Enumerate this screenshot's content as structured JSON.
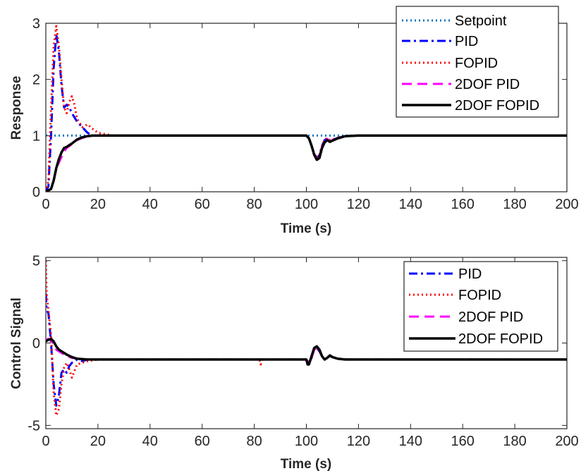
{
  "colors": {
    "setpoint": "#0072BD",
    "pid": "#0000FF",
    "fopid": "#FF0000",
    "twodof_pid": "#FF00FF",
    "twodof_fopid": "#000000"
  },
  "chart_data": [
    {
      "type": "line",
      "ylabel": "Response",
      "xlabel": "Time (s)",
      "xlim": [
        0,
        200
      ],
      "ylim": [
        0,
        3
      ],
      "xticks": [
        "0",
        "20",
        "40",
        "60",
        "80",
        "100",
        "120",
        "140",
        "160",
        "180",
        "200"
      ],
      "yticks": [
        "0",
        "1",
        "2",
        "3"
      ],
      "grid": false,
      "legend_position": "top-right",
      "series": [
        {
          "name": "Setpoint",
          "style": "dotted",
          "color": "#0072BD",
          "points": [
            [
              0,
              1
            ],
            [
              200,
              1
            ]
          ]
        },
        {
          "name": "PID",
          "style": "dashdot",
          "color": "#0000FF",
          "points": [
            [
              0,
              0
            ],
            [
              1,
              0.1
            ],
            [
              2,
              1.0
            ],
            [
              3,
              2.2
            ],
            [
              4,
              2.8
            ],
            [
              5,
              2.5
            ],
            [
              6,
              1.9
            ],
            [
              7,
              1.5
            ],
            [
              8,
              1.55
            ],
            [
              9,
              1.5
            ],
            [
              10,
              1.4
            ],
            [
              12,
              1.25
            ],
            [
              14,
              1.15
            ],
            [
              16,
              1.05
            ],
            [
              18,
              1.0
            ],
            [
              20,
              1.0
            ],
            [
              100,
              1.0
            ],
            [
              101,
              0.95
            ],
            [
              102,
              0.82
            ],
            [
              103,
              0.68
            ],
            [
              104,
              0.6
            ],
            [
              105,
              0.65
            ],
            [
              106,
              0.82
            ],
            [
              107,
              0.92
            ],
            [
              108,
              0.95
            ],
            [
              109,
              0.91
            ],
            [
              110,
              0.92
            ],
            [
              112,
              0.96
            ],
            [
              115,
              0.99
            ],
            [
              120,
              1.0
            ],
            [
              200,
              1.0
            ]
          ]
        },
        {
          "name": "FOPID",
          "style": "dotted",
          "color": "#FF0000",
          "points": [
            [
              0,
              0
            ],
            [
              1,
              0.2
            ],
            [
              2,
              1.5
            ],
            [
              3,
              2.6
            ],
            [
              4,
              2.95
            ],
            [
              5,
              2.6
            ],
            [
              6,
              2.0
            ],
            [
              7,
              1.5
            ],
            [
              8,
              1.4
            ],
            [
              9,
              1.6
            ],
            [
              10,
              1.7
            ],
            [
              11,
              1.55
            ],
            [
              12,
              1.3
            ],
            [
              14,
              1.15
            ],
            [
              16,
              1.2
            ],
            [
              18,
              1.12
            ],
            [
              20,
              1.05
            ],
            [
              22,
              1.03
            ],
            [
              26,
              1.0
            ],
            [
              100,
              1.0
            ],
            [
              101,
              0.95
            ],
            [
              102,
              0.82
            ],
            [
              103,
              0.68
            ],
            [
              104,
              0.6
            ],
            [
              105,
              0.65
            ],
            [
              106,
              0.82
            ],
            [
              107,
              0.92
            ],
            [
              108,
              0.96
            ],
            [
              109,
              0.92
            ],
            [
              110,
              0.93
            ],
            [
              112,
              0.96
            ],
            [
              115,
              0.99
            ],
            [
              120,
              1.0
            ],
            [
              200,
              1.0
            ]
          ]
        },
        {
          "name": "2DOF PID",
          "style": "dashed",
          "color": "#FF00FF",
          "points": [
            [
              0,
              0
            ],
            [
              2,
              0.05
            ],
            [
              3,
              0.2
            ],
            [
              4,
              0.4
            ],
            [
              5,
              0.52
            ],
            [
              6,
              0.62
            ],
            [
              7,
              0.72
            ],
            [
              8,
              0.78
            ],
            [
              10,
              0.85
            ],
            [
              12,
              0.92
            ],
            [
              14,
              0.96
            ],
            [
              16,
              0.98
            ],
            [
              18,
              1.0
            ],
            [
              100,
              1.0
            ],
            [
              101,
              0.95
            ],
            [
              102,
              0.82
            ],
            [
              103,
              0.66
            ],
            [
              104,
              0.58
            ],
            [
              105,
              0.62
            ],
            [
              106,
              0.8
            ],
            [
              107,
              0.9
            ],
            [
              108,
              0.94
            ],
            [
              109,
              0.9
            ],
            [
              110,
              0.92
            ],
            [
              112,
              0.96
            ],
            [
              115,
              0.99
            ],
            [
              120,
              1.0
            ],
            [
              200,
              1.0
            ]
          ]
        },
        {
          "name": "2DOF FOPID",
          "style": "solid",
          "color": "#000000",
          "points": [
            [
              0,
              0
            ],
            [
              2,
              0.05
            ],
            [
              3,
              0.2
            ],
            [
              4,
              0.42
            ],
            [
              5,
              0.58
            ],
            [
              6,
              0.7
            ],
            [
              7,
              0.78
            ],
            [
              8,
              0.8
            ],
            [
              9,
              0.83
            ],
            [
              10,
              0.86
            ],
            [
              12,
              0.93
            ],
            [
              14,
              0.97
            ],
            [
              16,
              0.99
            ],
            [
              18,
              1.0
            ],
            [
              100,
              1.0
            ],
            [
              101,
              0.95
            ],
            [
              102,
              0.82
            ],
            [
              103,
              0.66
            ],
            [
              104,
              0.57
            ],
            [
              105,
              0.6
            ],
            [
              106,
              0.78
            ],
            [
              107,
              0.88
            ],
            [
              108,
              0.92
            ],
            [
              109,
              0.89
            ],
            [
              110,
              0.91
            ],
            [
              112,
              0.95
            ],
            [
              115,
              0.99
            ],
            [
              120,
              1.0
            ],
            [
              200,
              1.0
            ]
          ]
        }
      ]
    },
    {
      "type": "line",
      "ylabel": "Control Signal",
      "xlabel": "Time (s)",
      "xlim": [
        0,
        200
      ],
      "ylim": [
        -5.2,
        5.2
      ],
      "xticks": [
        "0",
        "20",
        "40",
        "60",
        "80",
        "100",
        "120",
        "140",
        "160",
        "180",
        "200"
      ],
      "yticks": [
        "-5",
        "0",
        "5"
      ],
      "grid": false,
      "legend_position": "top-right",
      "series": [
        {
          "name": "PID",
          "style": "dashdot",
          "color": "#0000FF",
          "points": [
            [
              0,
              3.0
            ],
            [
              0.3,
              2.0
            ],
            [
              1,
              1.8
            ],
            [
              2,
              0.0
            ],
            [
              3,
              -2.5
            ],
            [
              4,
              -3.8
            ],
            [
              5,
              -3.2
            ],
            [
              6,
              -1.8
            ],
            [
              7,
              -1.6
            ],
            [
              8,
              -1.8
            ],
            [
              9,
              -1.4
            ],
            [
              10,
              -1.2
            ],
            [
              12,
              -1.0
            ],
            [
              14,
              -1.1
            ],
            [
              16,
              -1.0
            ],
            [
              20,
              -1.0
            ],
            [
              100,
              -1.0
            ],
            [
              101,
              -1.2
            ],
            [
              102,
              -0.9
            ],
            [
              103,
              -0.4
            ],
            [
              104,
              -0.3
            ],
            [
              105,
              -0.5
            ],
            [
              106,
              -0.8
            ],
            [
              107,
              -1.0
            ],
            [
              108,
              -0.9
            ],
            [
              109,
              -0.8
            ],
            [
              110,
              -0.85
            ],
            [
              112,
              -0.95
            ],
            [
              115,
              -1.0
            ],
            [
              200,
              -1.0
            ]
          ]
        },
        {
          "name": "FOPID",
          "style": "dotted",
          "color": "#FF0000",
          "points": [
            [
              0,
              5.0
            ],
            [
              0.3,
              3.0
            ],
            [
              1,
              2.0
            ],
            [
              2,
              0.5
            ],
            [
              3,
              -3.0
            ],
            [
              4,
              -4.4
            ],
            [
              5,
              -4.0
            ],
            [
              6,
              -2.5
            ],
            [
              7,
              -1.5
            ],
            [
              8,
              -1.2
            ],
            [
              9,
              -1.6
            ],
            [
              10,
              -2.1
            ],
            [
              11,
              -1.7
            ],
            [
              12,
              -1.3
            ],
            [
              14,
              -1.2
            ],
            [
              16,
              -1.1
            ],
            [
              20,
              -1.0
            ],
            [
              82,
              -1.0
            ],
            [
              82.5,
              -1.3
            ],
            [
              83,
              -1.0
            ],
            [
              100,
              -1.0
            ],
            [
              101,
              -1.2
            ],
            [
              102,
              -0.9
            ],
            [
              103,
              -0.4
            ],
            [
              104,
              -0.3
            ],
            [
              105,
              -0.5
            ],
            [
              106,
              -0.8
            ],
            [
              107,
              -1.0
            ],
            [
              108,
              -0.9
            ],
            [
              109,
              -0.75
            ],
            [
              110,
              -0.85
            ],
            [
              112,
              -0.95
            ],
            [
              115,
              -1.0
            ],
            [
              200,
              -1.0
            ]
          ]
        },
        {
          "name": "2DOF PID",
          "style": "dashed",
          "color": "#FF00FF",
          "points": [
            [
              0,
              0.2
            ],
            [
              1,
              0.25
            ],
            [
              2,
              0.2
            ],
            [
              3,
              -0.1
            ],
            [
              4,
              -0.4
            ],
            [
              5,
              -0.5
            ],
            [
              6,
              -0.6
            ],
            [
              8,
              -0.8
            ],
            [
              10,
              -0.9
            ],
            [
              12,
              -0.95
            ],
            [
              16,
              -1.0
            ],
            [
              100,
              -1.0
            ],
            [
              101,
              -1.2
            ],
            [
              102,
              -0.9
            ],
            [
              103,
              -0.4
            ],
            [
              104,
              -0.3
            ],
            [
              105,
              -0.5
            ],
            [
              106,
              -0.8
            ],
            [
              107,
              -1.0
            ],
            [
              108,
              -0.9
            ],
            [
              109,
              -0.8
            ],
            [
              110,
              -0.85
            ],
            [
              112,
              -0.95
            ],
            [
              115,
              -1.0
            ],
            [
              200,
              -1.0
            ]
          ]
        },
        {
          "name": "2DOF FOPID",
          "style": "solid",
          "color": "#000000",
          "points": [
            [
              0,
              0.1
            ],
            [
              1,
              0.2
            ],
            [
              2,
              0.25
            ],
            [
              3,
              0.1
            ],
            [
              4,
              -0.2
            ],
            [
              5,
              -0.4
            ],
            [
              6,
              -0.5
            ],
            [
              8,
              -0.7
            ],
            [
              10,
              -0.85
            ],
            [
              12,
              -0.95
            ],
            [
              16,
              -1.0
            ],
            [
              100,
              -1.0
            ],
            [
              100.5,
              -1.3
            ],
            [
              101,
              -1.3
            ],
            [
              102,
              -0.8
            ],
            [
              103,
              -0.3
            ],
            [
              104,
              -0.2
            ],
            [
              105,
              -0.4
            ],
            [
              106,
              -0.8
            ],
            [
              107,
              -1.0
            ],
            [
              108,
              -0.9
            ],
            [
              109,
              -0.75
            ],
            [
              110,
              -0.85
            ],
            [
              112,
              -0.95
            ],
            [
              115,
              -1.0
            ],
            [
              200,
              -1.0
            ]
          ]
        }
      ]
    }
  ]
}
